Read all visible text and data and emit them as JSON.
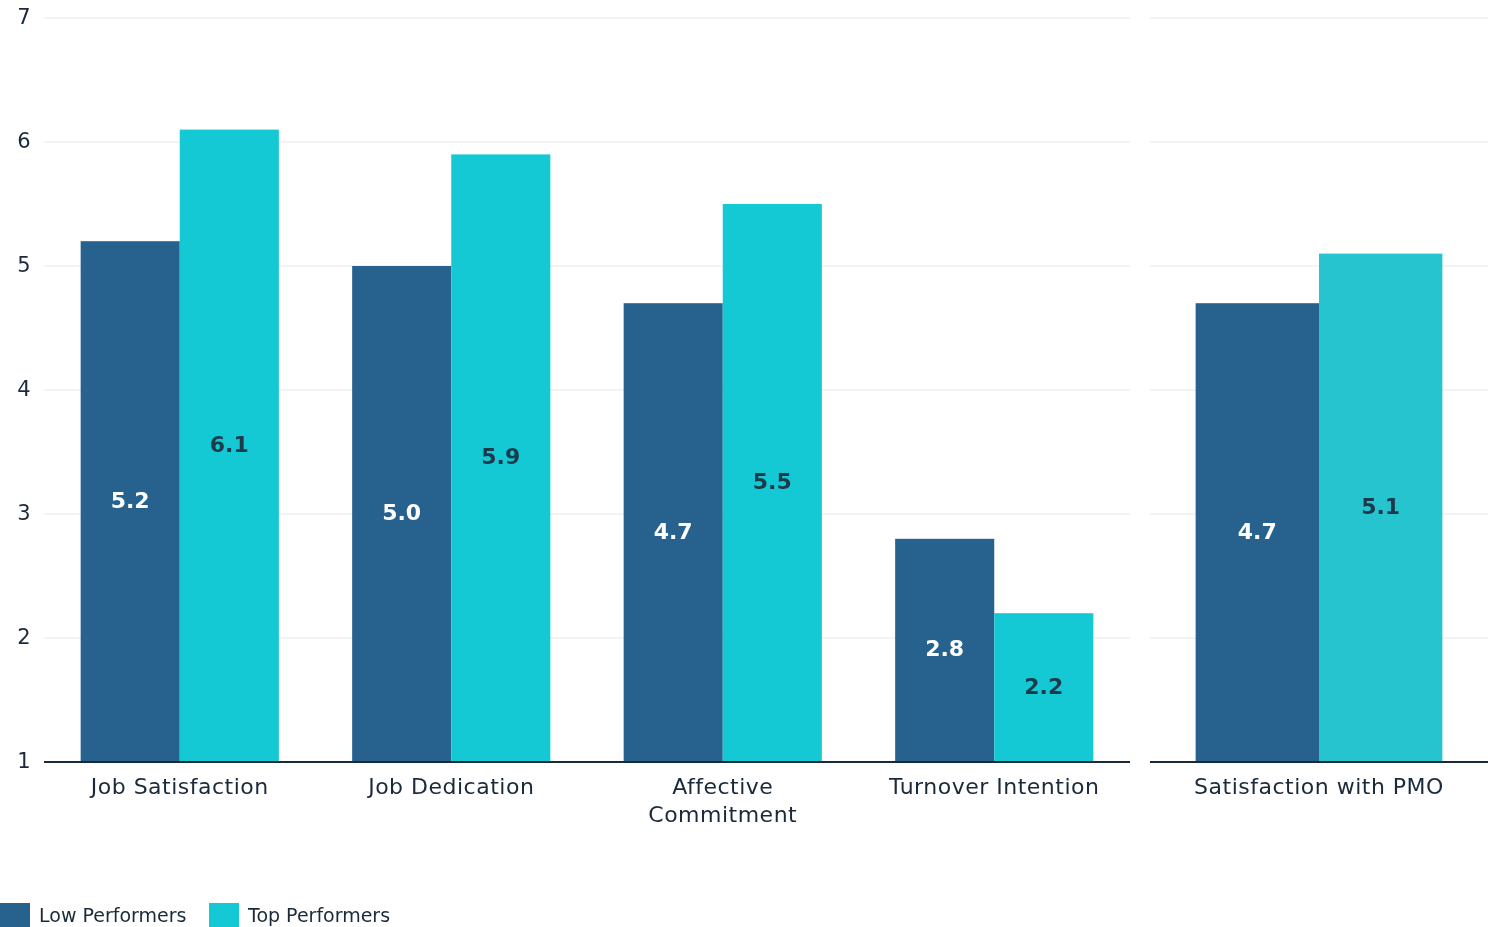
{
  "chart_data": [
    {
      "type": "bar",
      "categories": [
        "Job Satisfaction",
        "Job Dedication",
        "Affective Commitment",
        "Turnover Intention"
      ],
      "series": [
        {
          "name": "Low Performers",
          "color": "#27628f",
          "values": [
            5.2,
            5.0,
            4.7,
            2.8
          ],
          "value_labels": [
            "5.2",
            "5.0",
            "4.7",
            "2.8"
          ]
        },
        {
          "name": "Top Performers",
          "color": "#14c8d4",
          "values": [
            6.1,
            5.9,
            5.5,
            2.2
          ],
          "value_labels": [
            "6.1",
            "5.9",
            "5.5",
            "2.2"
          ]
        }
      ],
      "ylim": [
        1,
        7
      ],
      "yticks": [
        1,
        2,
        3,
        4,
        5,
        6,
        7
      ],
      "grid": "y",
      "legend": "bottom left"
    },
    {
      "type": "bar",
      "categories": [
        "Satisfaction with PMO"
      ],
      "series": [
        {
          "color": "#27628f",
          "values": [
            4.7
          ],
          "value_labels": [
            "4.7"
          ]
        },
        {
          "color": "#26c4cf",
          "values": [
            5.1
          ],
          "value_labels": [
            "5.1"
          ]
        }
      ],
      "ylim": [
        1,
        7
      ],
      "yticks": [
        1,
        2,
        3,
        4,
        5,
        6,
        7
      ],
      "grid": "y",
      "tick_labels": "x"
    }
  ]
}
